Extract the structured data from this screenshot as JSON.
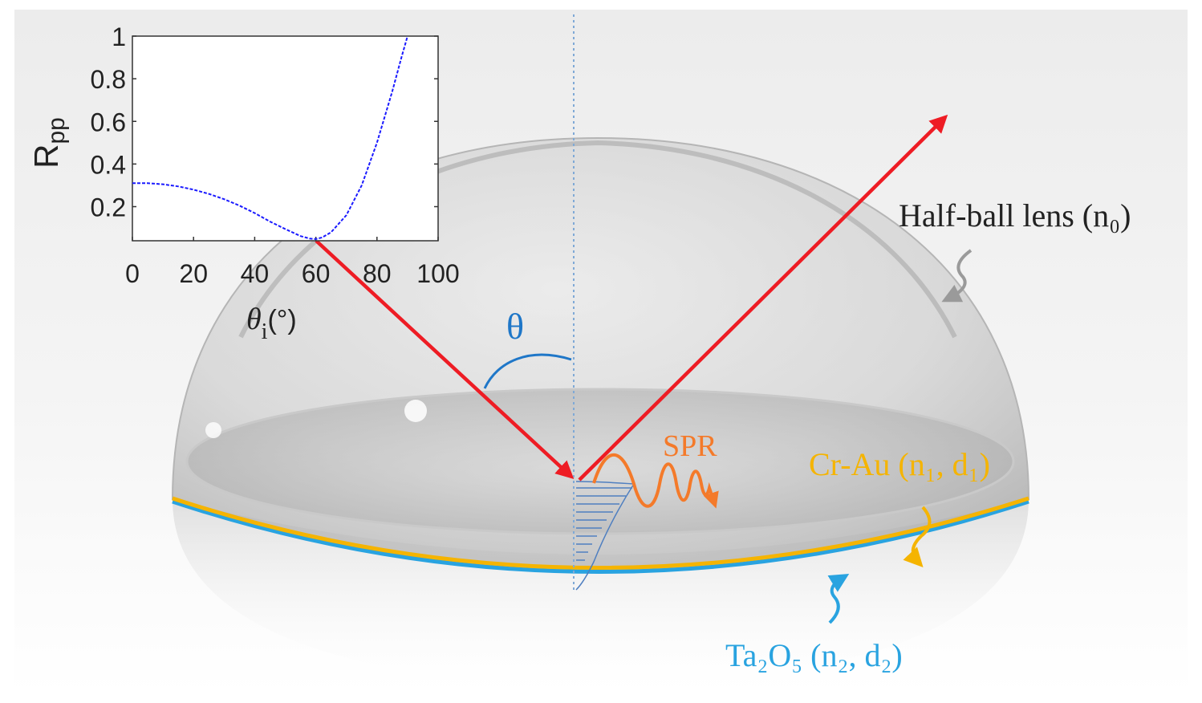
{
  "colors": {
    "ray": "#ee1c24",
    "theta_arc": "#1f77c8",
    "spr": "#f47a2a",
    "cr_au": "#f5b400",
    "ta2o5": "#29a3e0",
    "lens_edge": "#9a9a9a",
    "curve": "#1a1aff",
    "normal_line": "#7fa9d6"
  },
  "labels": {
    "theta": "θ",
    "spr": "SPR",
    "half_ball_lens": "Half-ball lens (n₀)",
    "cr_au": "Cr-Au (n₁, d₁)",
    "ta2o5": "Ta₂O₅ (n₂, d₂)"
  },
  "chart_data": {
    "type": "line",
    "title": "",
    "xlabel": "θi (°)",
    "xlabel_main": "θ",
    "xlabel_sub": "i",
    "xlabel_unit": "(°)",
    "ylabel": "Rpp",
    "ylabel_main": "R",
    "ylabel_sub": "pp",
    "xlim": [
      0,
      100
    ],
    "ylim": [
      0.04,
      1
    ],
    "xticks": [
      0,
      20,
      40,
      60,
      80,
      100
    ],
    "yticks": [
      0.2,
      0.4,
      0.6,
      0.8,
      1
    ],
    "ytick_labels": [
      "0.2",
      "0.4",
      "0.6",
      "0.8",
      "1"
    ],
    "grid": false,
    "series": [
      {
        "name": "Rpp",
        "x": [
          0,
          5,
          10,
          15,
          20,
          25,
          30,
          35,
          40,
          45,
          50,
          55,
          58,
          60,
          62,
          65,
          70,
          75,
          80,
          85,
          88,
          90
        ],
        "y": [
          0.31,
          0.31,
          0.305,
          0.295,
          0.28,
          0.26,
          0.235,
          0.205,
          0.17,
          0.13,
          0.095,
          0.062,
          0.05,
          0.048,
          0.055,
          0.08,
          0.16,
          0.3,
          0.5,
          0.74,
          0.9,
          1.0
        ]
      }
    ]
  }
}
